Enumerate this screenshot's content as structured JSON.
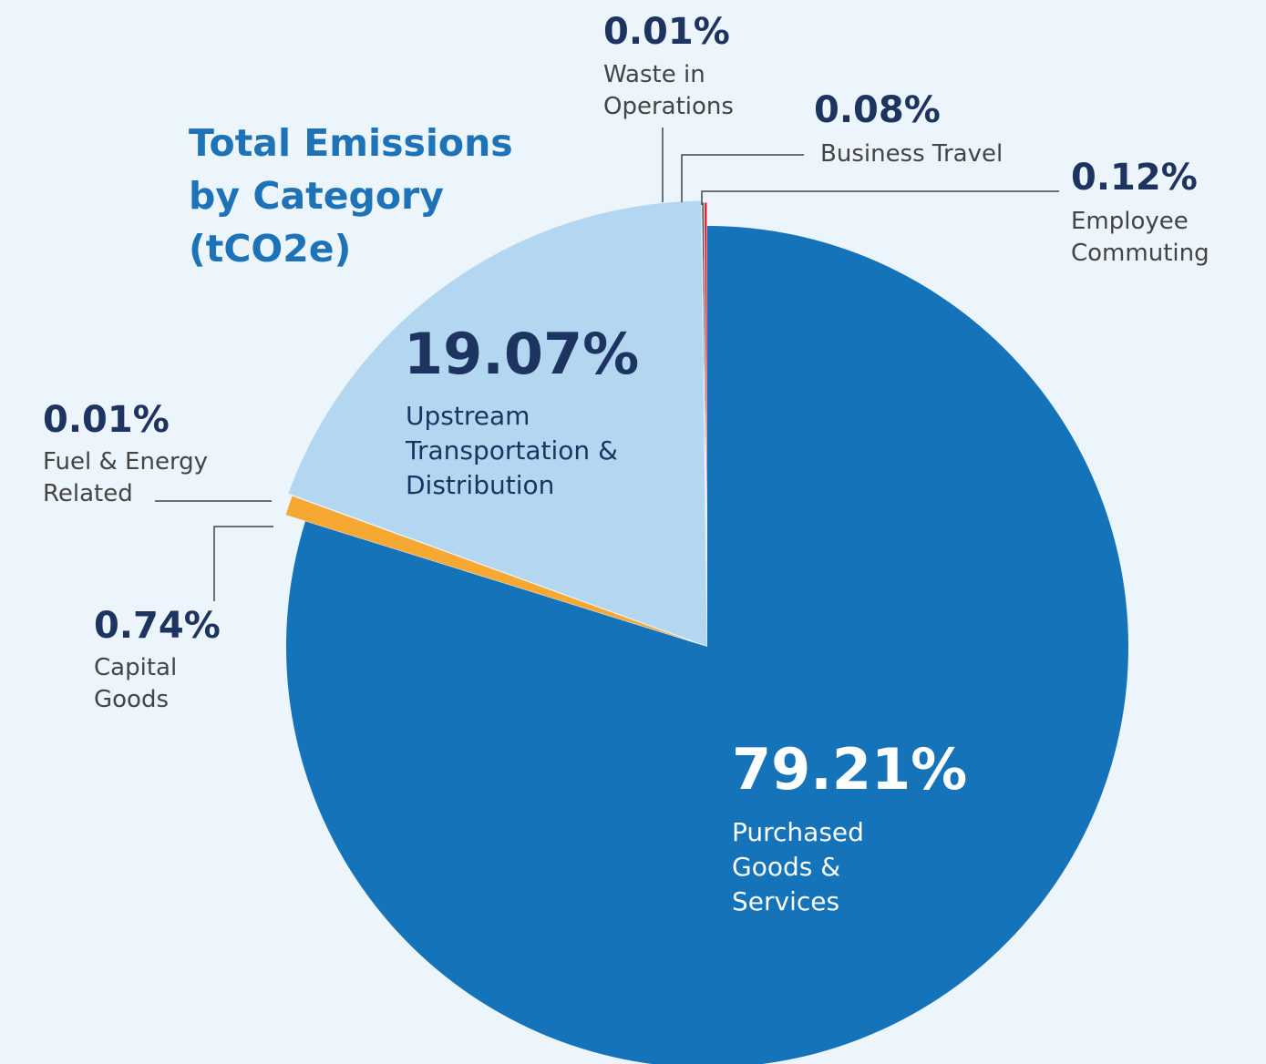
{
  "chart_data": {
    "type": "pie",
    "title": "Total Emissions by Category (tCO2e)",
    "categories": [
      "Purchased Goods & Services",
      "Capital Goods",
      "Fuel & Energy Related",
      "Upstream Transportation & Distribution",
      "Waste in Operations",
      "Business Travel",
      "Employee Commuting"
    ],
    "values": [
      79.21,
      0.74,
      0.01,
      19.07,
      0.01,
      0.08,
      0.12
    ],
    "value_labels": [
      "79.21%",
      "0.74%",
      "0.01%",
      "19.07%",
      "0.01%",
      "0.08%",
      "0.12%"
    ],
    "colors": [
      "#1473b9",
      "#f7a833",
      "#9a9a9a",
      "#b3d7f1",
      "#111111",
      "#3a3d42",
      "#e3262b"
    ]
  }
}
